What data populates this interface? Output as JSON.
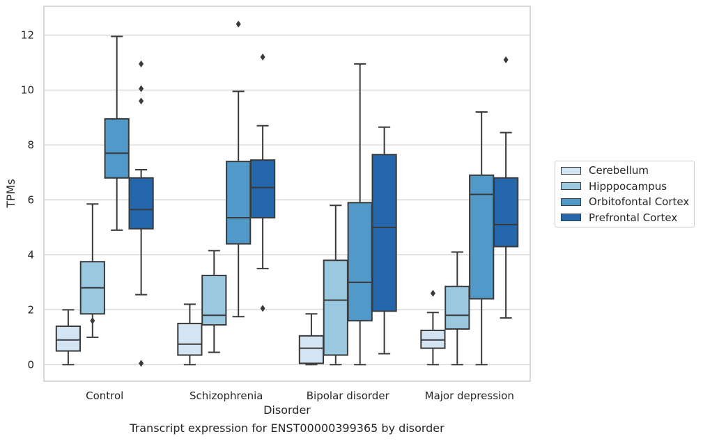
{
  "caption": "Transcript expression for ENST00000399365 by disorder",
  "chart_data": {
    "type": "box",
    "xlabel": "Disorder",
    "ylabel": "TPMs",
    "ylim": [
      -0.6,
      13.05
    ],
    "yticks": [
      0,
      2,
      4,
      6,
      8,
      10,
      12
    ],
    "grid": "horizontal",
    "legend_position": "right",
    "categories": [
      "Control",
      "Schizophrenia",
      "Bipolar disorder",
      "Major depression"
    ],
    "series": [
      {
        "name": "Cerebellum",
        "color": "#d3e4f3",
        "boxes": [
          {
            "min": 0.0,
            "q1": 0.5,
            "median": 0.9,
            "q3": 1.4,
            "max": 2.0,
            "outliers": []
          },
          {
            "min": 0.0,
            "q1": 0.35,
            "median": 0.75,
            "q3": 1.5,
            "max": 2.2,
            "outliers": []
          },
          {
            "min": 0.0,
            "q1": 0.05,
            "median": 0.6,
            "q3": 1.05,
            "max": 1.85,
            "outliers": []
          },
          {
            "min": 0.0,
            "q1": 0.6,
            "median": 0.9,
            "q3": 1.25,
            "max": 1.9,
            "outliers": [
              2.6
            ]
          }
        ]
      },
      {
        "name": "Hipppocampus",
        "color": "#9ac8e0",
        "boxes": [
          {
            "min": 1.0,
            "q1": 1.85,
            "median": 2.8,
            "q3": 3.75,
            "max": 5.85,
            "outliers": [
              1.6
            ]
          },
          {
            "min": 0.45,
            "q1": 1.45,
            "median": 1.8,
            "q3": 3.25,
            "max": 4.15,
            "outliers": []
          },
          {
            "min": 0.0,
            "q1": 0.35,
            "median": 2.35,
            "q3": 3.8,
            "max": 5.8,
            "outliers": []
          },
          {
            "min": 0.0,
            "q1": 1.3,
            "median": 1.8,
            "q3": 2.85,
            "max": 4.1,
            "outliers": []
          }
        ]
      },
      {
        "name": "Orbitofontal Cortex",
        "color": "#5199c9",
        "boxes": [
          {
            "min": 4.9,
            "q1": 6.8,
            "median": 7.7,
            "q3": 8.95,
            "max": 11.95,
            "outliers": []
          },
          {
            "min": 1.75,
            "q1": 4.4,
            "median": 5.35,
            "q3": 7.4,
            "max": 9.95,
            "outliers": [
              12.4
            ]
          },
          {
            "min": 0.0,
            "q1": 1.6,
            "median": 3.0,
            "q3": 5.9,
            "max": 10.95,
            "outliers": []
          },
          {
            "min": 0.0,
            "q1": 2.4,
            "median": 6.2,
            "q3": 6.9,
            "max": 9.2,
            "outliers": []
          }
        ]
      },
      {
        "name": "Prefrontal Cortex",
        "color": "#2567ac",
        "boxes": [
          {
            "min": 2.55,
            "q1": 4.95,
            "median": 5.65,
            "q3": 6.8,
            "max": 7.1,
            "outliers": [
              0.05,
              9.6,
              10.05,
              10.95
            ]
          },
          {
            "min": 3.5,
            "q1": 5.35,
            "median": 6.45,
            "q3": 7.45,
            "max": 8.7,
            "outliers": [
              2.05,
              11.2
            ]
          },
          {
            "min": 0.4,
            "q1": 1.95,
            "median": 5.0,
            "q3": 7.65,
            "max": 8.65,
            "outliers": []
          },
          {
            "min": 1.7,
            "q1": 4.3,
            "median": 5.1,
            "q3": 6.8,
            "max": 8.45,
            "outliers": [
              11.1
            ]
          }
        ]
      }
    ]
  }
}
